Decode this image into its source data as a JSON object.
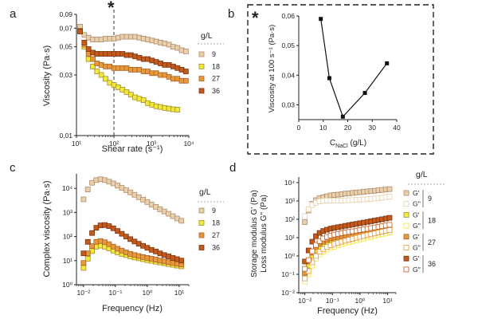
{
  "figure": {
    "panel_a_letter": "a",
    "panel_b_letter": "b",
    "panel_c_letter": "c",
    "panel_d_letter": "d",
    "star_a": "*",
    "star_b": "*"
  },
  "colors": {
    "c9": "#e6d1ac",
    "c18": "#f2ea3a",
    "c27": "#e7993a",
    "c36": "#c45a1c",
    "edge9": "#b48a6a",
    "edge18": "#a58c2a",
    "edge27": "#a9612a",
    "edge36": "#7a3410",
    "line_b": "#111111",
    "dash_box": "#222222"
  },
  "chart_data": [
    {
      "panel": "a",
      "type": "scatter",
      "title": "",
      "xlabel": "Shear rate (s⁻¹)",
      "ylabel": "Viscosity (Pa·s)",
      "xscale": "log",
      "yscale": "log",
      "xlim": [
        10,
        10000
      ],
      "ylim": [
        0.01,
        0.09
      ],
      "xticks": [
        {
          "v": 10,
          "l": "10¹"
        },
        {
          "v": 100,
          "l": "10²"
        },
        {
          "v": 1000,
          "l": "10³"
        },
        {
          "v": 10000,
          "l": "10⁴"
        }
      ],
      "yticks": [
        {
          "v": 0.01,
          "l": "0,01"
        },
        {
          "v": 0.03,
          "l": "0,03"
        },
        {
          "v": 0.05,
          "l": "0,05"
        },
        {
          "v": 0.07,
          "l": "0,07"
        },
        {
          "v": 0.09,
          "l": "0,09"
        }
      ],
      "vline": {
        "x": 100,
        "style": "dashed"
      },
      "legend_title": "g/L",
      "series": [
        {
          "name": "9",
          "color_key": "c9",
          "x": [
            12.5,
            16.2,
            21,
            27.3,
            35.5,
            46,
            59.7,
            77.5,
            100.5,
            130,
            169,
            219,
            284,
            368,
            478,
            620,
            804,
            1043,
            1353,
            1755,
            2277,
            2954,
            3832,
            4971,
            6448,
            8366
          ],
          "y": [
            0.072,
            0.062,
            0.059,
            0.057,
            0.057,
            0.057,
            0.058,
            0.058,
            0.058,
            0.059,
            0.06,
            0.06,
            0.06,
            0.06,
            0.059,
            0.058,
            0.057,
            0.056,
            0.055,
            0.054,
            0.053,
            0.052,
            0.05,
            0.049,
            0.047,
            0.046
          ]
        },
        {
          "name": "18",
          "color_key": "c18",
          "x": [
            12.5,
            16.2,
            21,
            27.3,
            35.5,
            46,
            59.7,
            77.5,
            100.5,
            130,
            169,
            219,
            284,
            368,
            478,
            620,
            804,
            1043,
            1353,
            1755,
            2277,
            2954,
            3832,
            4971
          ],
          "y": [
            0.066,
            0.05,
            0.04,
            0.035,
            0.032,
            0.03,
            0.028,
            0.026,
            0.025,
            0.024,
            0.023,
            0.022,
            0.021,
            0.02,
            0.0195,
            0.019,
            0.018,
            0.0175,
            0.017,
            0.0168,
            0.0165,
            0.0163,
            0.0161,
            0.016
          ]
        },
        {
          "name": "27",
          "color_key": "c27",
          "x": [
            12.5,
            16.2,
            21,
            27.3,
            35.5,
            46,
            59.7,
            77.5,
            100.5,
            130,
            169,
            219,
            284,
            368,
            478,
            620,
            804,
            1043,
            1353,
            1755,
            2277,
            2954,
            3832,
            4971,
            6448,
            8366
          ],
          "y": [
            0.067,
            0.052,
            0.044,
            0.04,
            0.037,
            0.036,
            0.035,
            0.035,
            0.034,
            0.034,
            0.034,
            0.034,
            0.033,
            0.033,
            0.033,
            0.032,
            0.032,
            0.031,
            0.031,
            0.03,
            0.03,
            0.029,
            0.028,
            0.028,
            0.027,
            0.027
          ]
        },
        {
          "name": "36",
          "color_key": "c36",
          "x": [
            12.5,
            16.2,
            21,
            27.3,
            35.5,
            46,
            59.7,
            77.5,
            100.5,
            130,
            169,
            219,
            284,
            368,
            478,
            620,
            804,
            1043,
            1353,
            1755,
            2277,
            2954,
            3832,
            4971,
            6448,
            8366
          ],
          "y": [
            0.066,
            0.054,
            0.048,
            0.045,
            0.044,
            0.044,
            0.044,
            0.044,
            0.044,
            0.044,
            0.044,
            0.043,
            0.043,
            0.042,
            0.041,
            0.04,
            0.04,
            0.039,
            0.038,
            0.037,
            0.036,
            0.036,
            0.035,
            0.034,
            0.033,
            0.032
          ]
        }
      ]
    },
    {
      "panel": "b",
      "type": "line",
      "title": "",
      "xlabel": "C",
      "xlabel_sub": "NaCl",
      "xlabel_unit": " (g/L)",
      "ylabel": "Viscosity at 100 s⁻¹ (Pa·s)",
      "xlim": [
        0,
        40
      ],
      "ylim": [
        0.025,
        0.06
      ],
      "xticks": [
        {
          "v": 0,
          "l": "0"
        },
        {
          "v": 10,
          "l": "10"
        },
        {
          "v": 20,
          "l": "20"
        },
        {
          "v": 30,
          "l": "30"
        },
        {
          "v": 40,
          "l": "40"
        }
      ],
      "yticks": [
        {
          "v": 0.03,
          "l": "0,03"
        },
        {
          "v": 0.04,
          "l": "0,04"
        },
        {
          "v": 0.05,
          "l": "0,05"
        },
        {
          "v": 0.06,
          "l": "0,06"
        }
      ],
      "x": [
        9,
        12.5,
        18,
        27,
        36
      ],
      "y": [
        0.059,
        0.039,
        0.026,
        0.034,
        0.044
      ]
    },
    {
      "panel": "c",
      "type": "scatter",
      "title": "",
      "xlabel": "Frequency (Hz)",
      "ylabel": "Complex viscosity (Pa·s)",
      "xscale": "log",
      "yscale": "log",
      "xlim": [
        0.006,
        20
      ],
      "ylim": [
        1,
        40000
      ],
      "xticks": [
        {
          "v": 0.01,
          "l": "10⁻²"
        },
        {
          "v": 0.1,
          "l": "10⁻¹"
        },
        {
          "v": 1,
          "l": "10⁰"
        },
        {
          "v": 10,
          "l": "10¹"
        }
      ],
      "yticks": [
        {
          "v": 1,
          "l": "10⁰"
        },
        {
          "v": 10,
          "l": "10¹"
        },
        {
          "v": 100,
          "l": "10²"
        },
        {
          "v": 1000,
          "l": "10³"
        },
        {
          "v": 10000,
          "l": "10⁴"
        }
      ],
      "legend_title": "g/L",
      "series": [
        {
          "name": "9",
          "color_key": "c9",
          "x": [
            0.01,
            0.0136,
            0.0185,
            0.0251,
            0.0341,
            0.0464,
            0.0631,
            0.0858,
            0.117,
            0.159,
            0.216,
            0.293,
            0.398,
            0.541,
            0.736,
            1,
            1.36,
            1.85,
            2.51,
            3.41,
            4.64,
            6.31,
            8.58,
            11.7
          ],
          "y": [
            3500,
            9000,
            17000,
            22000,
            24000,
            22000,
            19000,
            16000,
            13000,
            10500,
            8500,
            6800,
            5400,
            4300,
            3400,
            2700,
            2100,
            1700,
            1350,
            1100,
            880,
            700,
            560,
            450
          ]
        },
        {
          "name": "18",
          "color_key": "c18",
          "x": [
            0.01,
            0.0136,
            0.0185,
            0.0251,
            0.0341,
            0.0464,
            0.0631,
            0.0858,
            0.117,
            0.159,
            0.216,
            0.293,
            0.398,
            0.541,
            0.736,
            1,
            1.36,
            1.85,
            2.51,
            3.41,
            4.64,
            6.31,
            8.58,
            11.7
          ],
          "y": [
            5,
            12,
            25,
            38,
            42,
            38,
            32,
            26,
            22,
            19,
            17,
            15,
            13.5,
            12.5,
            11.5,
            10.5,
            9.8,
            9,
            8.4,
            7.8,
            7.2,
            6.7,
            6.2,
            5.8
          ]
        },
        {
          "name": "27",
          "color_key": "c27",
          "x": [
            0.01,
            0.0136,
            0.0185,
            0.0251,
            0.0341,
            0.0464,
            0.0631,
            0.0858,
            0.117,
            0.159,
            0.216,
            0.293,
            0.398,
            0.541,
            0.736,
            1,
            1.36,
            1.85,
            2.51,
            3.41,
            4.64,
            6.31,
            8.58,
            11.7
          ],
          "y": [
            8,
            20,
            40,
            60,
            65,
            58,
            48,
            38,
            31,
            26,
            22,
            19,
            17,
            15.5,
            14,
            13,
            12,
            11,
            10,
            9.3,
            8.6,
            8,
            7.4,
            6.9
          ]
        },
        {
          "name": "36",
          "color_key": "c36",
          "x": [
            0.01,
            0.0136,
            0.0185,
            0.0251,
            0.0341,
            0.0464,
            0.0631,
            0.0858,
            0.117,
            0.159,
            0.216,
            0.293,
            0.398,
            0.541,
            0.736,
            1,
            1.36,
            1.85,
            2.51,
            3.41,
            4.64,
            6.31,
            8.58,
            11.7
          ],
          "y": [
            20,
            60,
            140,
            230,
            290,
            300,
            270,
            220,
            170,
            130,
            100,
            78,
            62,
            50,
            41,
            34,
            28,
            24,
            20,
            17,
            15,
            13,
            11.5,
            10
          ]
        }
      ]
    },
    {
      "panel": "d",
      "type": "scatter",
      "title": "",
      "xlabel": "Frequency (Hz)",
      "ylabel": "Storage modulus G' (Pa)",
      "ylabel2": "Loss modulus G'' (Pa)",
      "xscale": "log",
      "yscale": "log",
      "xlim": [
        0.006,
        20
      ],
      "ylim": [
        0.01,
        20000
      ],
      "xticks": [
        {
          "v": 0.01,
          "l": "10⁻²"
        },
        {
          "v": 0.1,
          "l": "10⁻¹"
        },
        {
          "v": 1,
          "l": "10⁰"
        },
        {
          "v": 10,
          "l": "10¹"
        }
      ],
      "yticks": [
        {
          "v": 0.01,
          "l": "10⁻²"
        },
        {
          "v": 0.1,
          "l": "10⁻¹"
        },
        {
          "v": 1,
          "l": "10⁰"
        },
        {
          "v": 10,
          "l": "10¹"
        },
        {
          "v": 100,
          "l": "10²"
        },
        {
          "v": 1000,
          "l": "10³"
        },
        {
          "v": 10000,
          "l": "10⁴"
        }
      ],
      "legend_title": "g/L",
      "legend_rows": [
        {
          "label": "G'",
          "group": "9",
          "color_key": "c9",
          "filled": true
        },
        {
          "label": "G''",
          "group": "9",
          "color_key": "c9",
          "filled": false
        },
        {
          "label": "G'",
          "group": "18",
          "color_key": "c18",
          "filled": true
        },
        {
          "label": "G''",
          "group": "18",
          "color_key": "c18",
          "filled": false
        },
        {
          "label": "G'",
          "group": "27",
          "color_key": "c27",
          "filled": true
        },
        {
          "label": "G''",
          "group": "27",
          "color_key": "c27",
          "filled": false
        },
        {
          "label": "G'",
          "group": "36",
          "color_key": "c36",
          "filled": true
        },
        {
          "label": "G''",
          "group": "36",
          "color_key": "c36",
          "filled": false
        }
      ],
      "groups": [
        "9",
        "18",
        "27",
        "36"
      ],
      "x": [
        0.01,
        0.0136,
        0.0185,
        0.0251,
        0.0341,
        0.0464,
        0.0631,
        0.0858,
        0.117,
        0.159,
        0.216,
        0.293,
        0.398,
        0.541,
        0.736,
        1,
        1.36,
        1.85,
        2.51,
        3.41,
        4.64,
        6.31,
        8.58,
        11.7
      ],
      "series": [
        {
          "name": "G' 9",
          "color_key": "c9",
          "filled": true,
          "y": [
            70,
            300,
            700,
            1100,
            1400,
            1600,
            1800,
            2000,
            2100,
            2200,
            2350,
            2500,
            2600,
            2750,
            2900,
            3000,
            3150,
            3300,
            3450,
            3600,
            3800,
            4000,
            4200,
            4400
          ]
        },
        {
          "name": "G'' 9",
          "color_key": "c9",
          "filled": false,
          "y": [
            150,
            350,
            600,
            800,
            950,
            1000,
            1050,
            1050,
            1050,
            1050,
            1050,
            1080,
            1100,
            1120,
            1150,
            1180,
            1200,
            1250,
            1300,
            1350,
            1400,
            1500,
            1600,
            1700
          ]
        },
        {
          "name": "G' 18",
          "color_key": "c18",
          "filled": true,
          "y": [
            0.08,
            0.3,
            1,
            2,
            3,
            4,
            5,
            6,
            6.8,
            7.5,
            8.2,
            9,
            9.8,
            10.5,
            11.2,
            12,
            13,
            14,
            15,
            16,
            17.5,
            19,
            21,
            23
          ]
        },
        {
          "name": "G'' 18",
          "color_key": "c18",
          "filled": false,
          "y": [
            0.04,
            0.1,
            0.3,
            0.7,
            1.2,
            1.7,
            2.2,
            2.7,
            3.2,
            3.8,
            4.4,
            5,
            5.7,
            6.4,
            7.2,
            8,
            9,
            10,
            11.2,
            12.5,
            14,
            15.5,
            17,
            19
          ]
        },
        {
          "name": "G' 27",
          "color_key": "c27",
          "filled": true,
          "y": [
            0.12,
            0.5,
            1.5,
            3,
            4.5,
            6,
            7.5,
            9,
            10,
            11,
            12,
            13.2,
            14.5,
            15.8,
            17,
            18.5,
            20,
            22,
            24,
            26,
            28,
            30,
            32,
            35
          ]
        },
        {
          "name": "G'' 27",
          "color_key": "c27",
          "filled": false,
          "y": [
            0.06,
            0.15,
            0.45,
            1,
            1.7,
            2.4,
            3.1,
            3.8,
            4.5,
            5.2,
            6,
            6.8,
            7.7,
            8.7,
            9.8,
            11,
            12.3,
            13.7,
            15.2,
            17,
            19,
            21,
            23.5,
            26
          ]
        },
        {
          "name": "G' 36",
          "color_key": "c36",
          "filled": true,
          "y": [
            0.5,
            2,
            6,
            12,
            18,
            23,
            27,
            31,
            34,
            37,
            40,
            44,
            48,
            52,
            56,
            61,
            66,
            72,
            78,
            85,
            92,
            100,
            110,
            120
          ]
        },
        {
          "name": "G'' 36",
          "color_key": "c36",
          "filled": false,
          "y": [
            0.2,
            0.6,
            1.8,
            4,
            6.5,
            9,
            11,
            13,
            14.5,
            16,
            17.5,
            19,
            20.5,
            22,
            24,
            26,
            28,
            30,
            33,
            36,
            39,
            42,
            46,
            50
          ]
        }
      ]
    }
  ]
}
